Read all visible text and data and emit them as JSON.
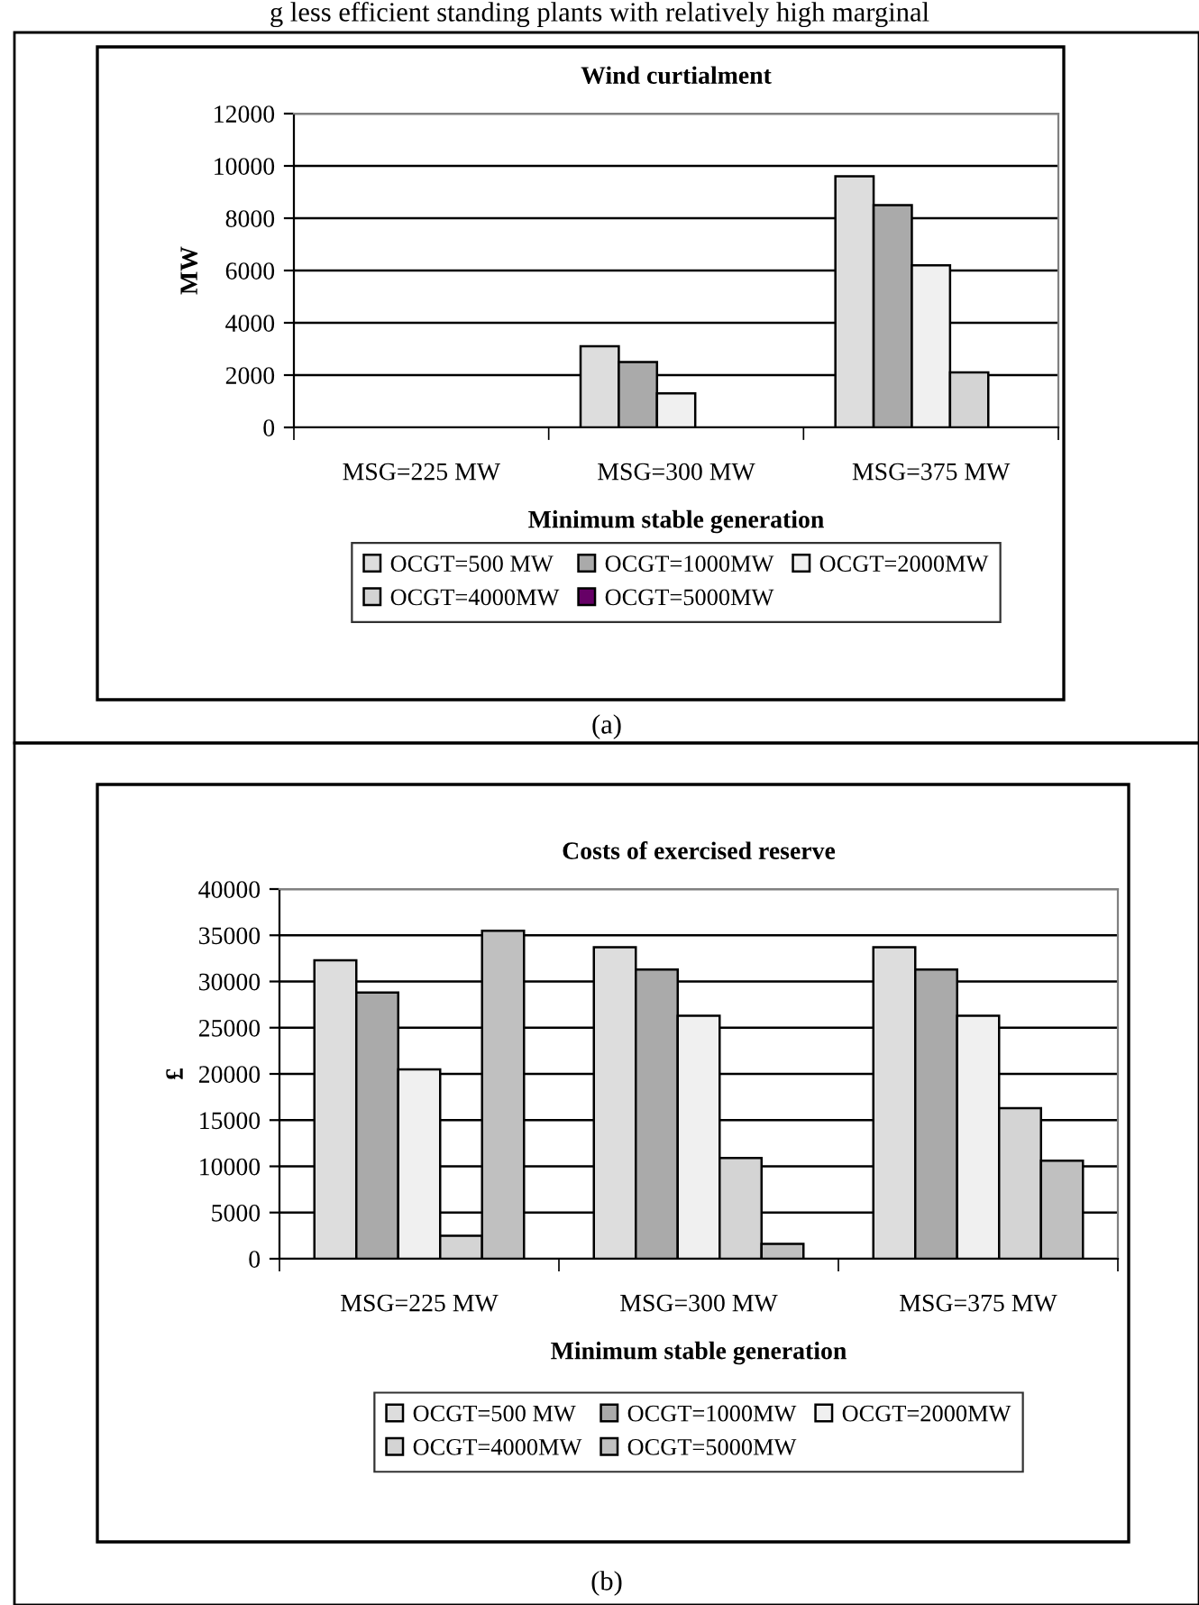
{
  "chart_data": [
    {
      "type": "bar",
      "title": "Wind curtialment",
      "xlabel": "Minimum stable generation",
      "ylabel": "MW",
      "categories": [
        "MSG=225 MW",
        "MSG=300 MW",
        "MSG=375 MW"
      ],
      "series": [
        {
          "name": "OCGT=500 MW",
          "color": "#dddddd",
          "values": [
            0,
            3100,
            9600
          ]
        },
        {
          "name": "OCGT=1000MW",
          "color": "#aaaaaa",
          "values": [
            0,
            2500,
            8500
          ]
        },
        {
          "name": "OCGT=2000MW",
          "color": "#f0f0f0",
          "values": [
            0,
            1300,
            6200
          ]
        },
        {
          "name": "OCGT=4000MW",
          "color": "#d4d4d4",
          "values": [
            0,
            0,
            2100
          ]
        },
        {
          "name": "OCGT=5000MW",
          "color": "#660066",
          "values": [
            0,
            0,
            0
          ]
        }
      ],
      "ylim": [
        0,
        12000
      ],
      "yticks": [
        0,
        2000,
        4000,
        6000,
        8000,
        10000,
        12000
      ],
      "grid": "y",
      "legend": "bottom",
      "annotations": [
        "g less efficient standing plants with relatively high marginal",
        "(a)"
      ]
    },
    {
      "type": "bar",
      "title": "Costs of exercised reserve",
      "xlabel": "Minimum stable generation",
      "ylabel": "£",
      "categories": [
        "MSG=225 MW",
        "MSG=300 MW",
        "MSG=375 MW"
      ],
      "series": [
        {
          "name": "OCGT=500 MW",
          "color": "#dddddd",
          "values": [
            32300,
            33700,
            33700
          ]
        },
        {
          "name": "OCGT=1000MW",
          "color": "#aaaaaa",
          "values": [
            28800,
            31300,
            31300
          ]
        },
        {
          "name": "OCGT=2000MW",
          "color": "#f0f0f0",
          "values": [
            20500,
            26300,
            26300
          ]
        },
        {
          "name": "OCGT=4000MW",
          "color": "#d4d4d4",
          "values": [
            2500,
            10900,
            16300
          ]
        },
        {
          "name": "OCGT=5000MW",
          "color": "#c0c0c0",
          "values": [
            35500,
            1600,
            10600
          ]
        }
      ],
      "ylim": [
        0,
        40000
      ],
      "yticks": [
        0,
        5000,
        10000,
        15000,
        20000,
        25000,
        30000,
        35000,
        40000
      ],
      "grid": "y",
      "legend": "bottom",
      "annotations": [
        "(b)"
      ]
    }
  ]
}
